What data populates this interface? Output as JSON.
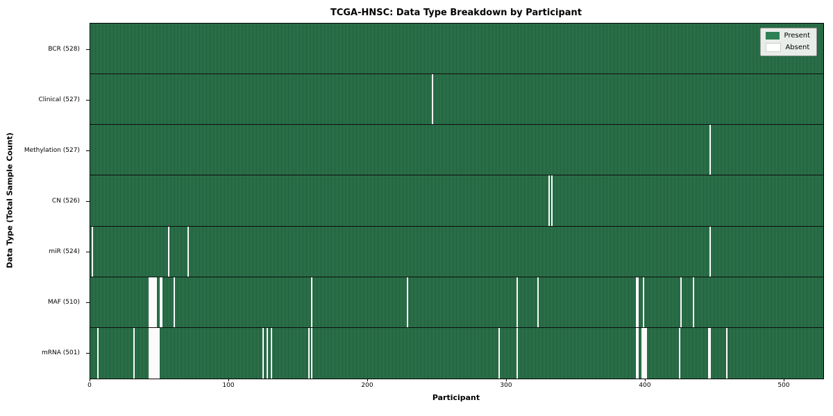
{
  "title": "TCGA-HNSC: Data Type Breakdown by Participant",
  "xlabel": "Participant",
  "ylabel": "Data Type (Total Sample Count)",
  "legend": {
    "present_label": "Present",
    "absent_label": "Absent"
  },
  "colors": {
    "present": "#2e8055",
    "present_edge": "#1d5636",
    "absent": "#ffffff",
    "legend_bg": "#e9ede9"
  },
  "chart_data": {
    "type": "heatmap",
    "title": "TCGA-HNSC: Data Type Breakdown by Participant",
    "xlabel": "Participant",
    "ylabel": "Data Type (Total Sample Count)",
    "legend": [
      "Present",
      "Absent"
    ],
    "legend_position": "upper right",
    "x_ticks": [
      0,
      100,
      200,
      300,
      400,
      500
    ],
    "x_range": [
      0,
      528
    ],
    "total_participants": 528,
    "rows": [
      {
        "data_type": "BCR",
        "label": "BCR (528)",
        "present_count": 528,
        "absent_participants": []
      },
      {
        "data_type": "Clinical",
        "label": "Clinical (527)",
        "present_count": 527,
        "absent_participants": [
          246
        ]
      },
      {
        "data_type": "Methylation",
        "label": "Methylation (527)",
        "present_count": 527,
        "absent_participants": [
          446
        ]
      },
      {
        "data_type": "CN",
        "label": "CN (526)",
        "present_count": 526,
        "absent_participants": [
          330,
          332
        ]
      },
      {
        "data_type": "miR",
        "label": "miR (524)",
        "present_count": 524,
        "absent_participants": [
          1,
          56,
          70,
          446
        ]
      },
      {
        "data_type": "MAF",
        "label": "MAF (510)",
        "present_count": 510,
        "absent_participants": [
          42,
          43,
          44,
          45,
          46,
          47,
          50,
          51,
          60,
          159,
          228,
          307,
          322,
          393,
          394,
          398,
          425,
          434
        ]
      },
      {
        "data_type": "mRNA",
        "label": "mRNA (501)",
        "present_count": 501,
        "absent_participants": [
          5,
          31,
          42,
          43,
          44,
          45,
          46,
          47,
          48,
          49,
          124,
          127,
          130,
          157,
          159,
          294,
          307,
          393,
          394,
          397,
          398,
          399,
          400,
          424,
          445,
          446,
          458
        ]
      }
    ]
  }
}
